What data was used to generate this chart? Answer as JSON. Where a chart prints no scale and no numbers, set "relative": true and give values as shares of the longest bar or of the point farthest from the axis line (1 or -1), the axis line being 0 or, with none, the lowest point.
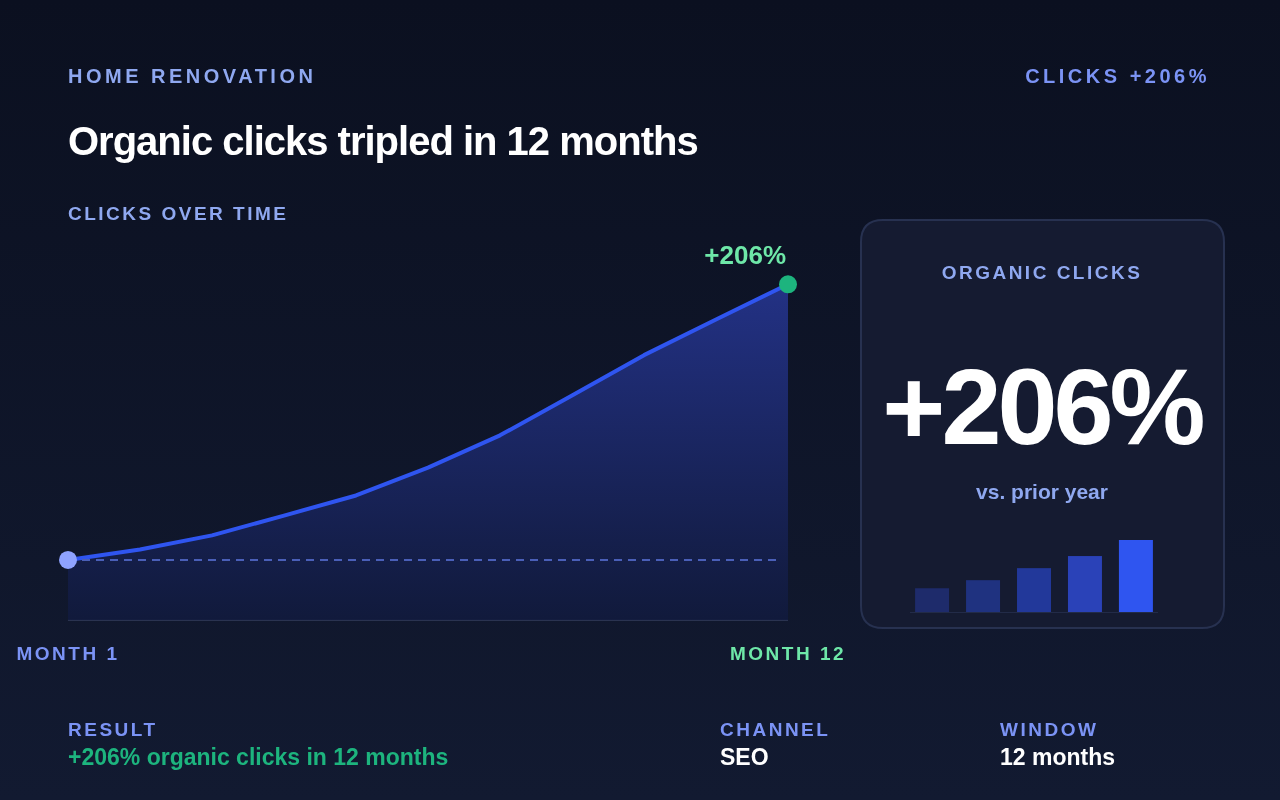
{
  "chart_data": [
    {
      "type": "area",
      "title": "Organic clicks tripled in 12 months",
      "subtitle": "CLICKS OVER TIME",
      "relative": true,
      "categories": [
        "MONTH 1",
        null,
        null,
        null,
        null,
        null,
        null,
        null,
        null,
        null,
        "MONTH 12"
      ],
      "series": [
        {
          "type": "area",
          "color": "#2f55f0",
          "values": [
            0.179,
            0.21,
            0.252,
            0.311,
            0.371,
            0.454,
            0.55,
            0.669,
            0.789,
            0.895,
            1
          ]
        }
      ],
      "ref_lines": [
        {
          "axis": "y",
          "value": 0.179,
          "color": "#4a5fb8",
          "line_style": "dashed"
        }
      ],
      "annotations": [
        "HOME RENOVATION",
        "CLICKS +206%",
        {
          "text": "+206%",
          "x": "MONTH 12",
          "y": 1
        }
      ]
    },
    {
      "type": "other",
      "title": "ORGANIC CLICKS",
      "annotations": [
        "+206%",
        "vs. prior year"
      ]
    },
    {
      "type": "bar",
      "relative": true,
      "categories": [
        null,
        null,
        null,
        null,
        null
      ],
      "values": [
        0.33,
        0.442,
        0.609,
        0.777,
        1
      ],
      "colors": [
        "#1e2b6b",
        "#1f3280",
        "#22389a",
        "#2a42b8",
        "#2f55f0"
      ]
    },
    {
      "type": "other",
      "annotations": [
        "RESULT",
        "+206% organic clicks in 12 months",
        "CHANNEL",
        "SEO",
        "WINDOW",
        "12 months"
      ]
    }
  ]
}
